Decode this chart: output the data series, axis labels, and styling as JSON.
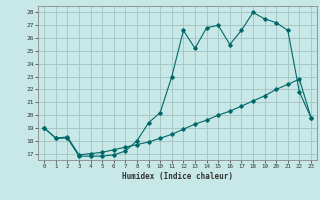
{
  "title": "",
  "xlabel": "Humidex (Indice chaleur)",
  "ylabel": "",
  "background_color": "#c8e8e8",
  "grid_color": "#a8c8c8",
  "line_color": "#006868",
  "xlim": [
    -0.5,
    23.5
  ],
  "ylim": [
    16.5,
    28.5
  ],
  "yticks": [
    17,
    18,
    19,
    20,
    21,
    22,
    23,
    24,
    25,
    26,
    27,
    28
  ],
  "xticks": [
    0,
    1,
    2,
    3,
    4,
    5,
    6,
    7,
    8,
    9,
    10,
    11,
    12,
    13,
    14,
    15,
    16,
    17,
    18,
    19,
    20,
    21,
    22,
    23
  ],
  "line1_x": [
    0,
    1,
    2,
    3,
    4,
    5,
    6,
    7,
    8,
    9,
    10,
    11,
    12,
    13,
    14,
    15,
    16,
    17,
    18,
    19,
    20,
    21,
    22,
    23
  ],
  "line1_y": [
    19.0,
    18.2,
    18.2,
    16.8,
    16.8,
    16.8,
    16.9,
    17.2,
    18.0,
    19.4,
    20.2,
    23.0,
    26.6,
    25.2,
    26.8,
    27.0,
    25.5,
    26.6,
    28.0,
    27.5,
    27.2,
    26.6,
    21.8,
    19.8
  ],
  "line2_x": [
    0,
    1,
    2,
    3,
    4,
    5,
    6,
    7,
    8,
    9,
    10,
    11,
    12,
    13,
    14,
    15,
    16,
    17,
    18,
    19,
    20,
    21,
    22,
    23
  ],
  "line2_y": [
    19.0,
    18.2,
    18.3,
    16.9,
    17.0,
    17.1,
    17.3,
    17.5,
    17.7,
    17.9,
    18.2,
    18.5,
    18.9,
    19.3,
    19.6,
    20.0,
    20.3,
    20.7,
    21.1,
    21.5,
    22.0,
    22.4,
    22.8,
    19.8
  ]
}
